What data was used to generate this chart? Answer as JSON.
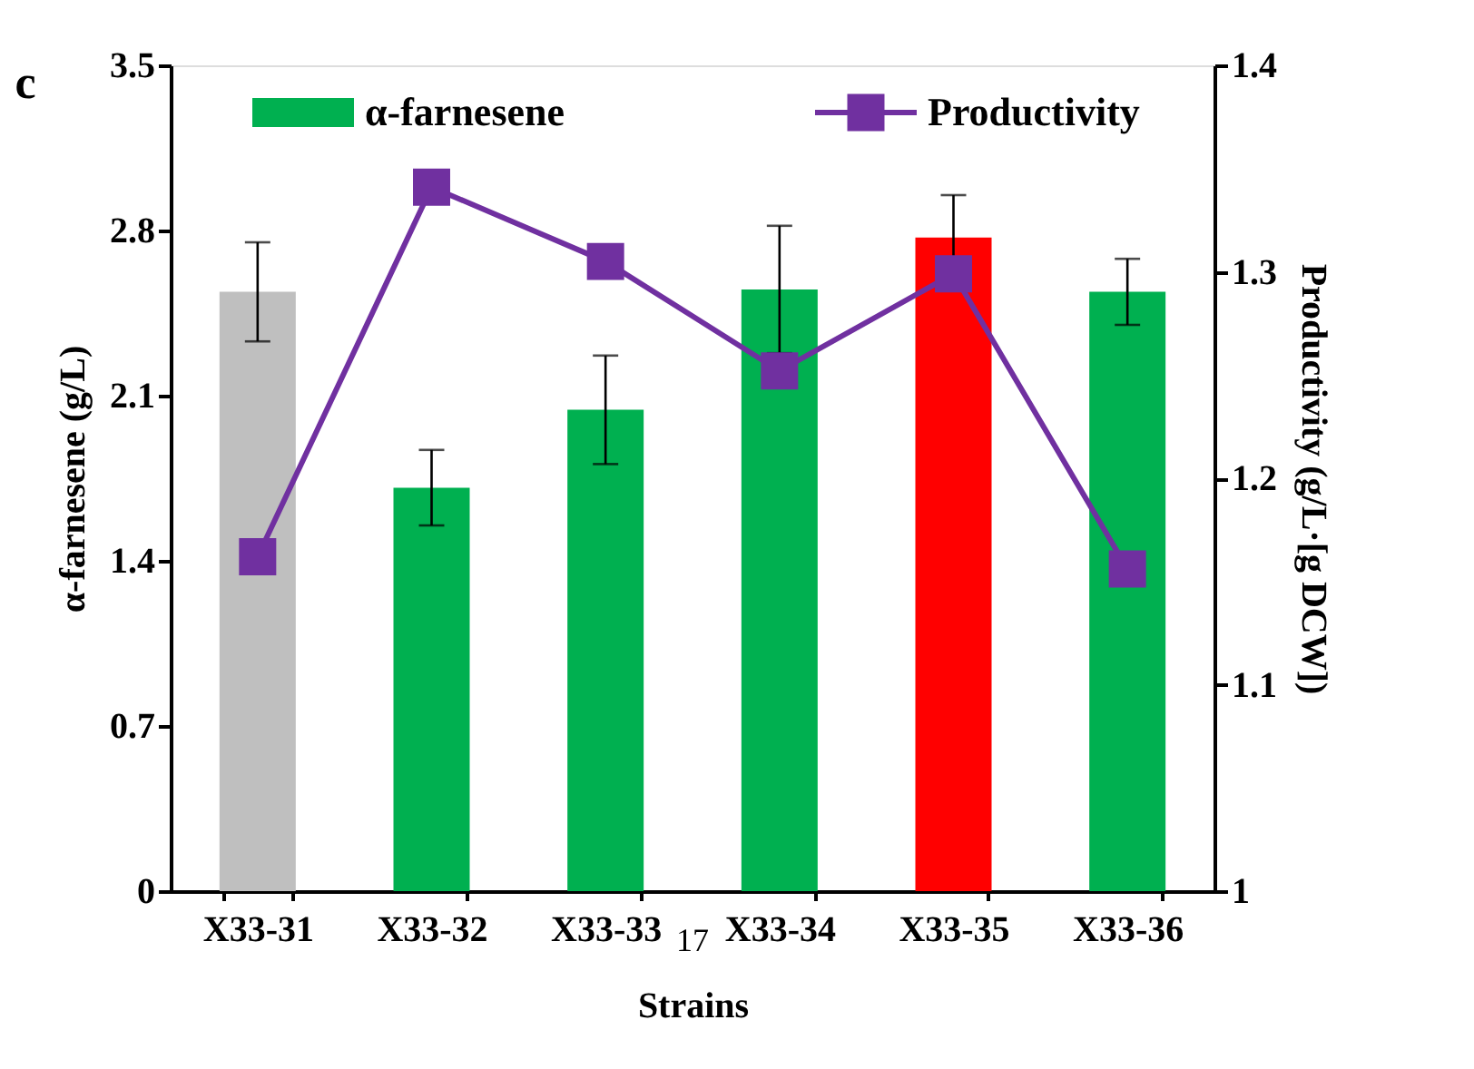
{
  "chart_data": {
    "type": "bar",
    "xlabel": "Strains",
    "ylabel": "α-farnesene (g/L)",
    "y2label": "Productivity (g/L·[g DCW])",
    "categories": [
      "X33-31",
      "X33-32",
      "X33-33",
      "X33-34",
      "X33-35",
      "X33-36"
    ],
    "series": [
      {
        "name": "α-farnesene",
        "color": "#00b050",
        "colors": [
          "#bfbfbf",
          "#00b050",
          "#00b050",
          "#00b050",
          "#ff0000",
          "#00b050"
        ],
        "values": [
          2.54,
          1.71,
          2.04,
          2.55,
          2.77,
          2.54
        ],
        "errors": [
          0.21,
          0.16,
          0.23,
          0.27,
          0.18,
          0.14
        ]
      },
      {
        "name": "Productivity",
        "type": "line",
        "axis": "y2",
        "color": "#7030a0",
        "marker": "square",
        "values": [
          1.162,
          1.341,
          1.305,
          1.252,
          1.299,
          1.156
        ]
      }
    ],
    "ylim": [
      0,
      3.5
    ],
    "yticks": [
      0,
      0.7,
      1.4,
      2.1,
      2.8,
      3.5
    ],
    "y2lim": [
      1,
      1.4
    ],
    "y2ticks": [
      1,
      1.1,
      1.2,
      1.3,
      1.4
    ],
    "grid": false,
    "legend": "top",
    "annotations": [
      "c",
      "17"
    ]
  }
}
